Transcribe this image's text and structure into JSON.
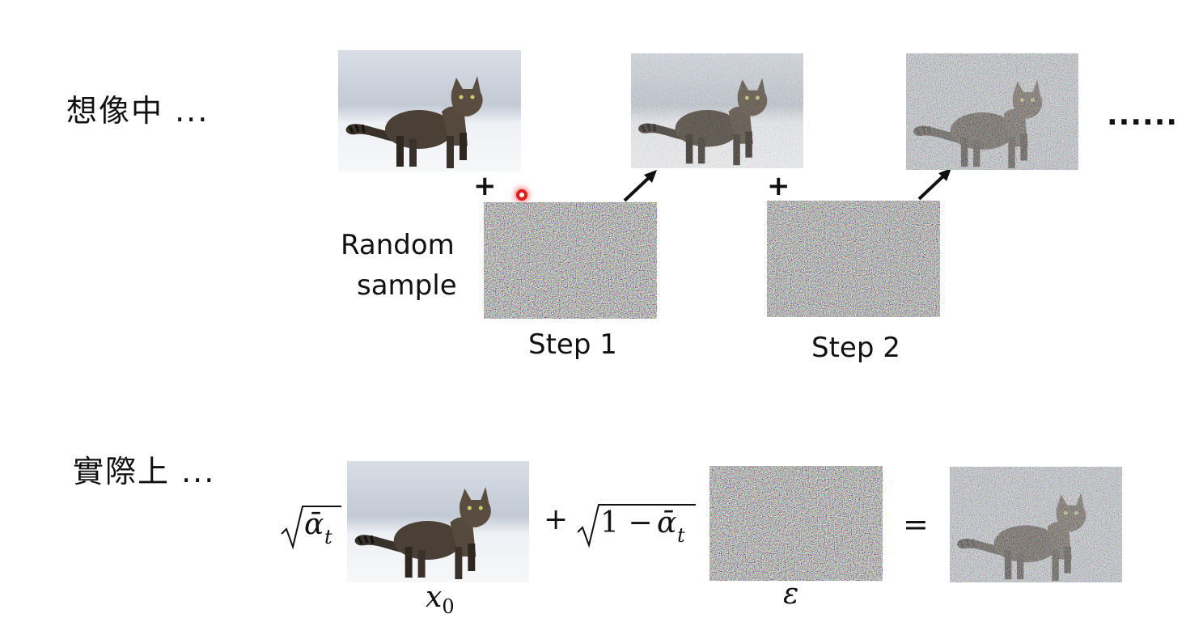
{
  "top": {
    "label": "想像中 ...",
    "random_label_line1": "Random",
    "random_label_line2": "sample",
    "plus": "+",
    "step1": "Step 1",
    "step2": "Step 2",
    "ellipsis": "......"
  },
  "bottom": {
    "label": "實際上 ...",
    "sqrt_alpha": "ᾱ",
    "sub_t": "t",
    "plus_sqrt_prefix": "+",
    "one_minus": "1 − ",
    "equals": "=",
    "x0_x": "x",
    "x0_sub": "0",
    "epsilon": "ε"
  },
  "colors": {
    "snow": "#e8ecf2",
    "cat_body": "#4a4036",
    "cat_dark": "#2a241e",
    "arrow": "#111111",
    "cursor": "#e21b1b"
  },
  "icons": [
    "cat-image",
    "noise-image",
    "arrow-icon",
    "sqrt-symbol",
    "cursor-dot"
  ]
}
